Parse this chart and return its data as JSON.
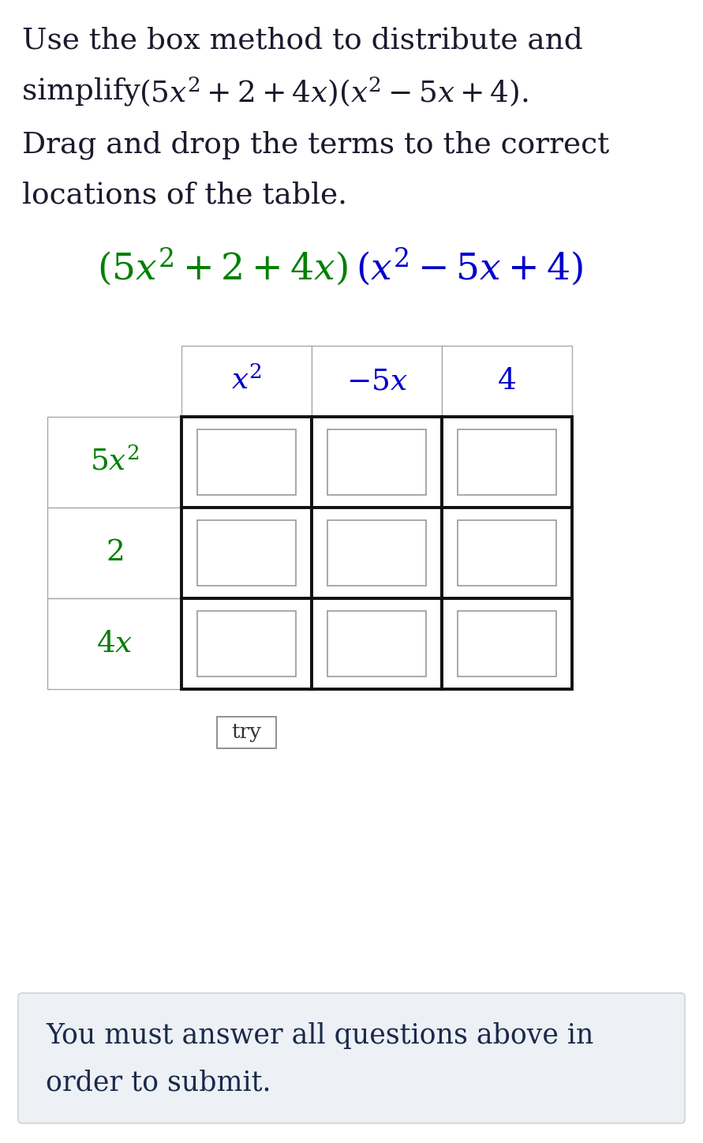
{
  "background_color": "#ffffff",
  "instr_line1": "Use the box method to distribute and",
  "instr_line2_plain": "simplify ",
  "instr_line2_math": "(5x² + 2 + 4x)(x² – 5x + 4).",
  "instr_line3": "Drag and drop the terms to the correct",
  "instr_line4": "locations of the table.",
  "col_header_color": "#0000cc",
  "row_header_color": "#008000",
  "formula_left_color": "#008000",
  "formula_right_color": "#0000cc",
  "instruction_color": "#1a1a2e",
  "try_button_text": "try",
  "footer_bg_color": "#edf0f5",
  "footer_text_color": "#1a2a4a",
  "footer_line1": "You must answer all questions above in",
  "footer_line2": "order to submit."
}
